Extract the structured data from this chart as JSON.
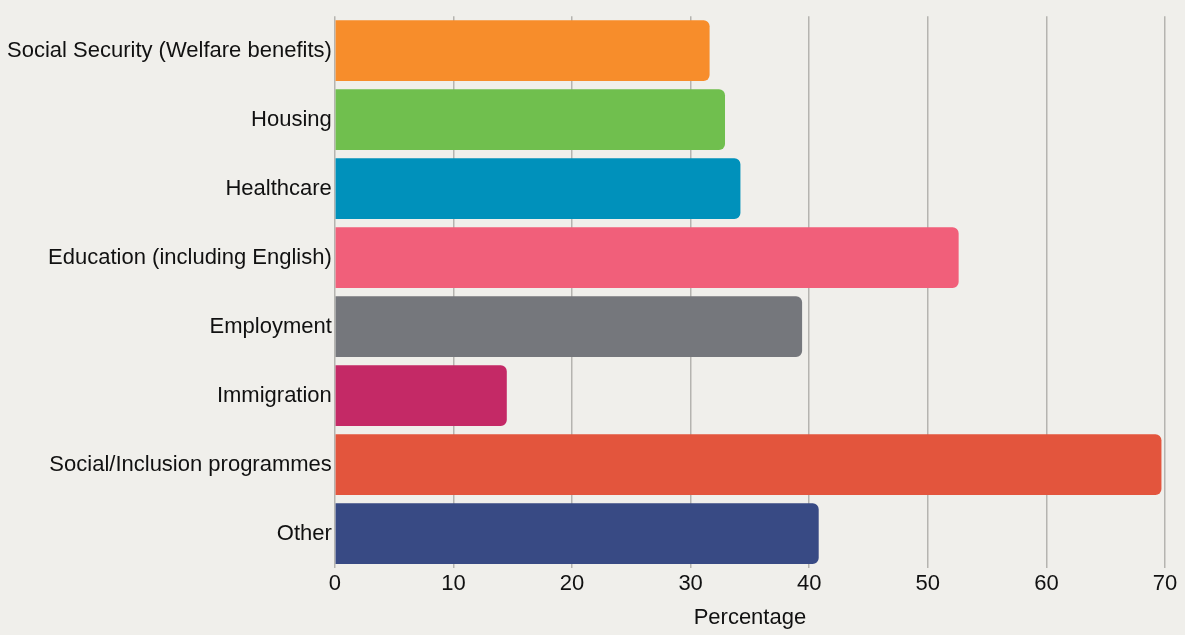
{
  "chart_data": {
    "type": "bar",
    "orientation": "horizontal",
    "xlabel": "Percentage",
    "categories": [
      "Social Security (Welfare benefits)",
      "Housing",
      "Healthcare",
      "Education (including English)",
      "Employment",
      "Immigration",
      "Social/Inclusion programmes",
      "Other"
    ],
    "values": [
      31.6,
      32.9,
      34.2,
      52.6,
      39.4,
      14.5,
      69.7,
      40.8
    ],
    "colors": [
      "#f78d2b",
      "#70bf4e",
      "#0091bb",
      "#f15f7a",
      "#75777c",
      "#c42966",
      "#e3553d",
      "#384a84"
    ],
    "xlim": [
      0,
      70
    ],
    "xticks": [
      0,
      10,
      20,
      30,
      40,
      50,
      60,
      70
    ],
    "grid": "x"
  }
}
